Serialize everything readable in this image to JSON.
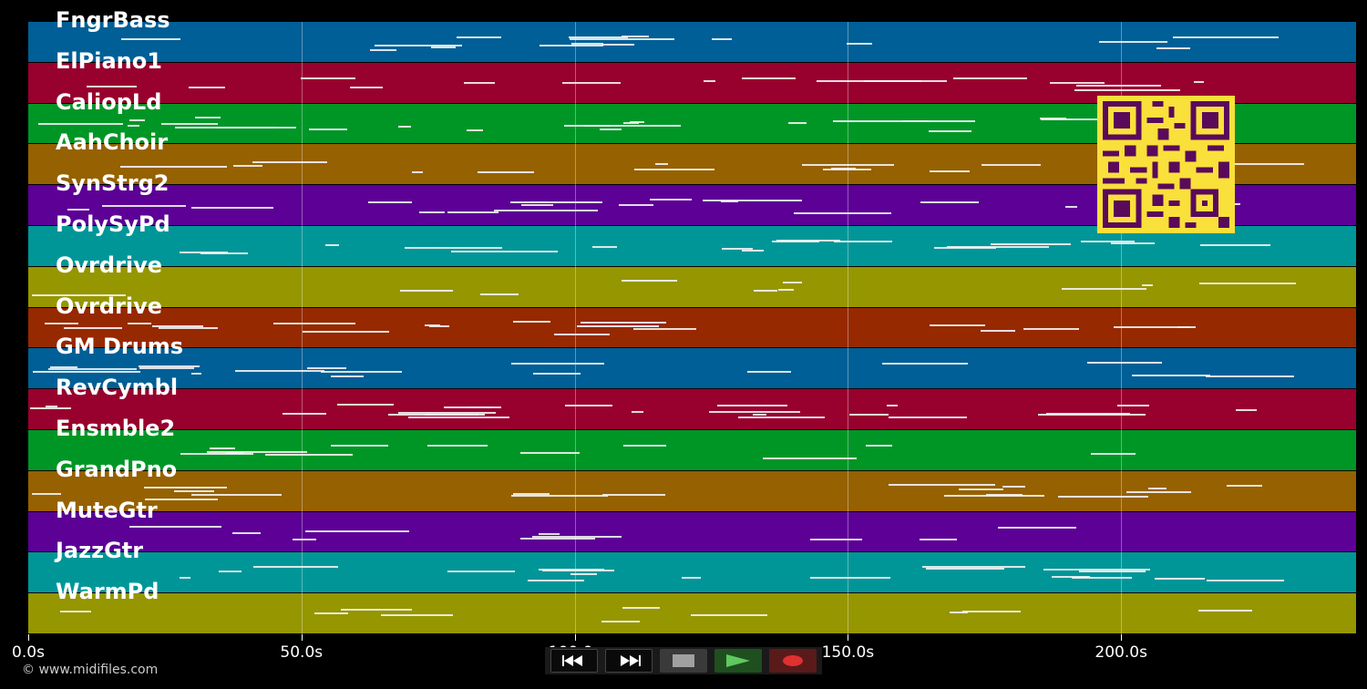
{
  "tracks": [
    {
      "name": "FngrBass",
      "color": "#005f96"
    },
    {
      "name": "ElPiano1",
      "color": "#98002e"
    },
    {
      "name": "CaliopLd",
      "color": "#009626"
    },
    {
      "name": "AahChoir",
      "color": "#966100"
    },
    {
      "name": "SynStrg2",
      "color": "#5c0096"
    },
    {
      "name": "PolySyPd",
      "color": "#009698"
    },
    {
      "name": "Ovrdrive",
      "color": "#969600"
    },
    {
      "name": "Ovrdrive",
      "color": "#962900"
    },
    {
      "name": "GM Drums",
      "color": "#005f96"
    },
    {
      "name": "RevCymbl",
      "color": "#98002e"
    },
    {
      "name": "Ensmble2",
      "color": "#009626"
    },
    {
      "name": "GrandPno",
      "color": "#966100"
    },
    {
      "name": "MuteGtr",
      "color": "#5c0096"
    },
    {
      "name": "JazzGtr",
      "color": "#009698"
    },
    {
      "name": "WarmPd",
      "color": "#969600"
    }
  ],
  "timeline": {
    "ticks": [
      {
        "label": "0.0s",
        "seconds": 0
      },
      {
        "label": "50.0s",
        "seconds": 50
      },
      {
        "label": "100.0s",
        "seconds": 100
      },
      {
        "label": "150.0s",
        "seconds": 150
      },
      {
        "label": "200.0s",
        "seconds": 200
      }
    ],
    "max_seconds": 243
  },
  "copyright": "© www.midifiles.com",
  "transport": {
    "rewind_icon": "rewind-icon",
    "forward_icon": "fast-forward-icon",
    "stop_icon": "stop-icon",
    "play_icon": "play-icon",
    "record_icon": "record-icon"
  }
}
